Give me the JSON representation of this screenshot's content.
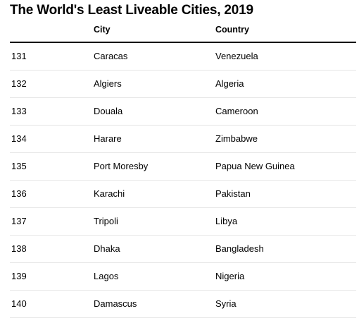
{
  "chart_data": {
    "type": "table",
    "title": "The World's Least Liveable Cities, 2019",
    "columns": [
      "",
      "City",
      "Country"
    ],
    "rows": [
      {
        "rank": "131",
        "city": "Caracas",
        "country": "Venezuela"
      },
      {
        "rank": "132",
        "city": "Algiers",
        "country": "Algeria"
      },
      {
        "rank": "133",
        "city": "Douala",
        "country": "Cameroon"
      },
      {
        "rank": "134",
        "city": "Harare",
        "country": "Zimbabwe"
      },
      {
        "rank": "135",
        "city": "Port Moresby",
        "country": "Papua New Guinea"
      },
      {
        "rank": "136",
        "city": "Karachi",
        "country": "Pakistan"
      },
      {
        "rank": "137",
        "city": "Tripoli",
        "country": "Libya"
      },
      {
        "rank": "138",
        "city": "Dhaka",
        "country": "Bangladesh"
      },
      {
        "rank": "139",
        "city": "Lagos",
        "country": "Nigeria"
      },
      {
        "rank": "140",
        "city": "Damascus",
        "country": "Syria"
      }
    ]
  }
}
